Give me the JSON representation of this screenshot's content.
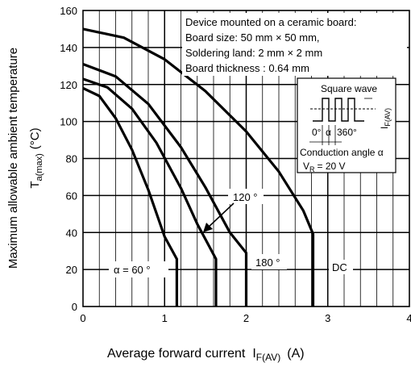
{
  "chart_data": {
    "type": "line",
    "xlabel": {
      "main": "Average forward current",
      "symbol": "I",
      "symbol_sub": "F(AV)",
      "unit": "(A)"
    },
    "ylabel": {
      "main": "Maximum allowable ambient temperature",
      "symbol": "T",
      "symbol_sub": "a(max)",
      "unit": "(°C)"
    },
    "xlim": [
      0,
      4
    ],
    "ylim": [
      0,
      160
    ],
    "x_ticks": [
      "0",
      "1",
      "2",
      "3",
      "4"
    ],
    "y_ticks": [
      "0",
      "20",
      "40",
      "60",
      "80",
      "100",
      "120",
      "140",
      "160"
    ],
    "minor_grid": {
      "x_step": 0.2,
      "y_step": 20
    },
    "major_grid": {
      "x_step": 1,
      "y_step": 20
    },
    "series": [
      {
        "name": "α = 60 °",
        "points": [
          [
            0,
            118
          ],
          [
            0.2,
            113.8
          ],
          [
            0.4,
            101.8
          ],
          [
            0.6,
            84.7
          ],
          [
            0.8,
            63.1
          ],
          [
            1.0,
            37.7
          ],
          [
            1.15,
            25.7
          ],
          [
            1.15,
            0
          ]
        ]
      },
      {
        "name": "120 °",
        "points": [
          [
            0,
            123
          ],
          [
            0.3,
            118.4
          ],
          [
            0.6,
            106.9
          ],
          [
            0.9,
            88.5
          ],
          [
            1.2,
            64
          ],
          [
            1.4,
            44.6
          ],
          [
            1.63,
            25.7
          ],
          [
            1.63,
            0
          ]
        ]
      },
      {
        "name": "180 °",
        "points": [
          [
            0,
            131
          ],
          [
            0.4,
            124.4
          ],
          [
            0.8,
            109.5
          ],
          [
            1.2,
            86.1
          ],
          [
            1.5,
            64.4
          ],
          [
            1.8,
            40
          ],
          [
            2.0,
            29
          ],
          [
            2.0,
            0
          ]
        ]
      },
      {
        "name": "DC",
        "points": [
          [
            0,
            150
          ],
          [
            0.5,
            145.3
          ],
          [
            1.0,
            133.6
          ],
          [
            1.5,
            116.4
          ],
          [
            2.0,
            94.6
          ],
          [
            2.4,
            72.9
          ],
          [
            2.7,
            51.8
          ],
          [
            2.82,
            39.2
          ],
          [
            2.82,
            0
          ]
        ]
      }
    ],
    "annotations": {
      "conditions": [
        "Device mounted on a ceramic board:",
        "Board size: 50 mm × 50 mm,",
        "Soldering land: 2 mm × 2 mm",
        "Board thickness : 0.64 mm"
      ],
      "inset": {
        "title": "Square wave",
        "current_symbol": "I",
        "current_sub": "F(AV)",
        "angle_left": "0°",
        "angle_alpha": "α",
        "angle_right": "360°",
        "conduction": "Conduction angle α",
        "vr_symbol": "V",
        "vr_sub": "R",
        "vr_value": "= 20 V"
      }
    }
  }
}
